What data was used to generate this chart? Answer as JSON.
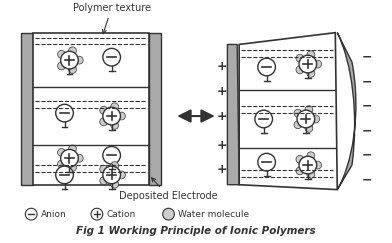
{
  "title": "Fig 1 Working Principle of Ionic Polymers",
  "legend_items": [
    {
      "label": "Anion",
      "symbol": "-"
    },
    {
      "label": "Cation",
      "symbol": "+"
    },
    {
      "label": "Water molecule",
      "symbol": "o"
    }
  ],
  "polymer_texture_label": "Polymer texture",
  "deposited_electrode_label": "Deposited Electrode",
  "bg_color": "#ffffff",
  "text_color": "#000000",
  "gray_color": "#aaaaaa",
  "dark_gray": "#888888",
  "line_color": "#333333"
}
